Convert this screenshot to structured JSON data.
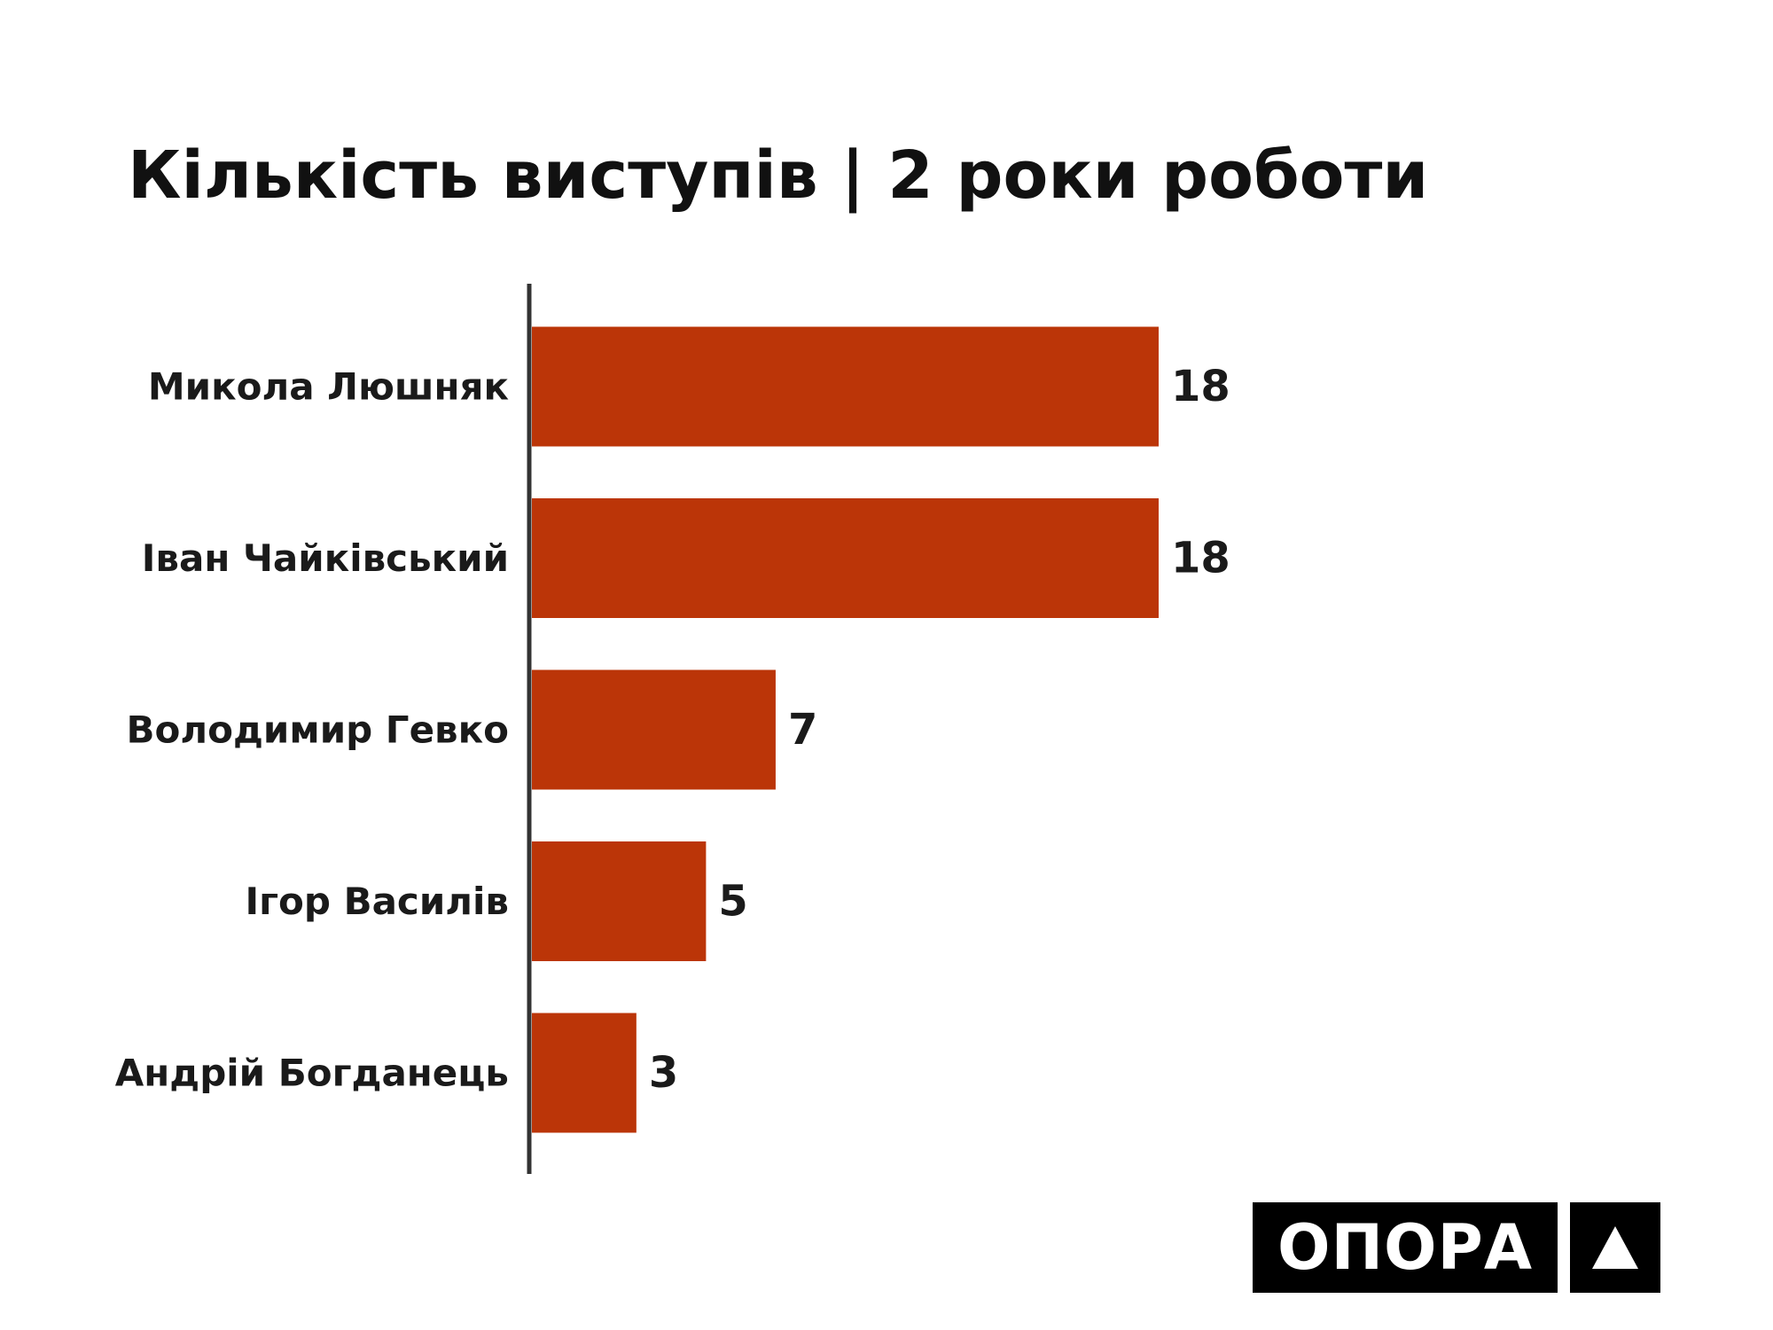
{
  "chart_data": {
    "type": "bar",
    "orientation": "horizontal",
    "title": "Кількість виступів | 2 роки роботи",
    "categories": [
      "Микола Люшняк",
      "Іван Чайківський",
      "Володимир Гевко",
      "Ігор Василів",
      "Андрій Богданець"
    ],
    "values": [
      18,
      18,
      7,
      5,
      3
    ],
    "xlim": [
      0,
      18
    ],
    "grid": false,
    "legend": "none",
    "bar_color": "#bb3508",
    "axis_color": "#333333"
  },
  "logo": {
    "text": "ОПОРА",
    "mark_icon": "triangle-icon"
  }
}
